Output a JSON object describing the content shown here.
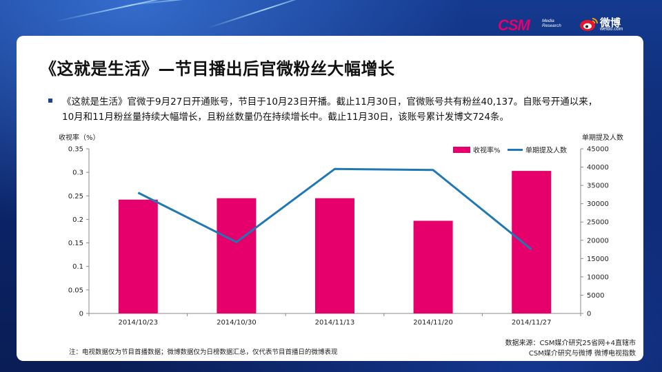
{
  "branding": {
    "csm_logo": "CSM",
    "csm_sub_line1": "Media",
    "csm_sub_line2": "Research",
    "weibo_logo": "微博",
    "weibo_sub": "weibo.com"
  },
  "slide": {
    "title": "《这就是生活》—节目播出后官微粉丝大幅增长",
    "paragraph_line1": "《这就是生活》官微于9月27日开通账号，节目于10月23日开播。截止11月30日，官微账号共有粉丝40,137。自账号开通以来，",
    "paragraph_line2": "10月和11月粉丝量持续大幅增长，且粉丝数量仍在持续增长中。截止11月30日，该账号累计发博文724条。",
    "note": "注：电视数据仅为节目首播数据；微博数据仅为日榜数据汇总，仅代表节目首播日的微博表现",
    "source_line1": "数据来源：CSM媒介研究25省网+4直辖市",
    "source_line2": "CSM媒介研究与微博 微博电视指数"
  },
  "colors": {
    "bar": "#e5006b",
    "line": "#1f77b4",
    "bullet": "#1f3f99"
  },
  "chart_data": {
    "type": "bar",
    "categories": [
      "2014/10/23",
      "2014/10/30",
      "2014/11/13",
      "2014/11/20",
      "2014/11/27"
    ],
    "series": [
      {
        "name": "收视率%",
        "type": "bar",
        "axis": "left",
        "values": [
          0.242,
          0.245,
          0.245,
          0.197,
          0.303
        ]
      },
      {
        "name": "单期提及人数",
        "type": "line",
        "axis": "right",
        "values": [
          33000,
          19500,
          39500,
          39200,
          17500
        ]
      }
    ],
    "ylabel_left": "收视率（%）",
    "ylabel_right": "单期提及人数",
    "ylim_left": [
      0,
      0.35
    ],
    "ylim_right": [
      0,
      45000
    ],
    "yticks_left": [
      "0",
      "0.05",
      "0.1",
      "0.15",
      "0.2",
      "0.25",
      "0.3",
      "0.35"
    ],
    "yticks_right": [
      "0",
      "5000",
      "10000",
      "15000",
      "20000",
      "25000",
      "30000",
      "35000",
      "40000",
      "45000"
    ],
    "legend_position": "top-right",
    "grid": false
  }
}
